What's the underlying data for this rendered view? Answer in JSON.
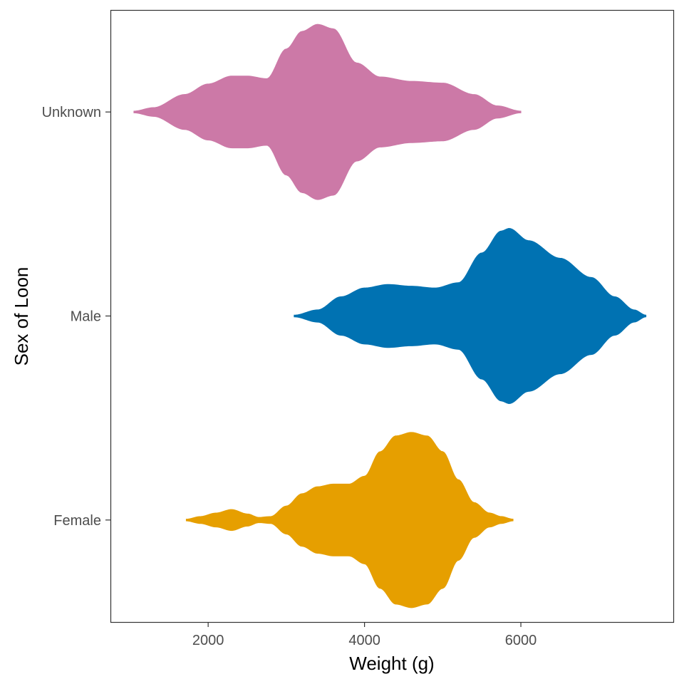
{
  "chart_data": {
    "type": "violin",
    "orientation": "horizontal",
    "xlabel": "Weight (g)",
    "ylabel": "Sex of Loon",
    "xlim": [
      750,
      7950
    ],
    "x_ticks": [
      2000,
      4000,
      6000
    ],
    "categories": [
      "Female",
      "Male",
      "Unknown"
    ],
    "grid": false,
    "legend": "none",
    "series": [
      {
        "category": "Female",
        "color": "#E69F00",
        "density": [
          [
            1720,
            0.01
          ],
          [
            1900,
            0.04
          ],
          [
            2100,
            0.08
          ],
          [
            2300,
            0.12
          ],
          [
            2500,
            0.07
          ],
          [
            2650,
            0.03
          ],
          [
            2800,
            0.04
          ],
          [
            3000,
            0.16
          ],
          [
            3200,
            0.3
          ],
          [
            3400,
            0.38
          ],
          [
            3600,
            0.41
          ],
          [
            3800,
            0.41
          ],
          [
            4000,
            0.5
          ],
          [
            4200,
            0.78
          ],
          [
            4400,
            0.96
          ],
          [
            4600,
            1.0
          ],
          [
            4800,
            0.96
          ],
          [
            5000,
            0.78
          ],
          [
            5200,
            0.46
          ],
          [
            5400,
            0.2
          ],
          [
            5600,
            0.08
          ],
          [
            5750,
            0.04
          ],
          [
            5900,
            0.01
          ]
        ]
      },
      {
        "category": "Male",
        "color": "#0072B2",
        "density": [
          [
            3100,
            0.01
          ],
          [
            3400,
            0.07
          ],
          [
            3700,
            0.22
          ],
          [
            4000,
            0.32
          ],
          [
            4300,
            0.36
          ],
          [
            4600,
            0.34
          ],
          [
            4900,
            0.32
          ],
          [
            5200,
            0.38
          ],
          [
            5500,
            0.72
          ],
          [
            5750,
            0.97
          ],
          [
            5850,
            1.0
          ],
          [
            6100,
            0.86
          ],
          [
            6500,
            0.66
          ],
          [
            6900,
            0.44
          ],
          [
            7200,
            0.22
          ],
          [
            7450,
            0.07
          ],
          [
            7600,
            0.01
          ]
        ]
      },
      {
        "category": "Unknown",
        "color": "#CC79A7",
        "density": [
          [
            1050,
            0.01
          ],
          [
            1300,
            0.05
          ],
          [
            1700,
            0.2
          ],
          [
            2000,
            0.32
          ],
          [
            2300,
            0.41
          ],
          [
            2500,
            0.41
          ],
          [
            2750,
            0.38
          ],
          [
            3000,
            0.72
          ],
          [
            3200,
            0.92
          ],
          [
            3400,
            1.0
          ],
          [
            3600,
            0.95
          ],
          [
            3900,
            0.56
          ],
          [
            4200,
            0.4
          ],
          [
            4600,
            0.35
          ],
          [
            5000,
            0.33
          ],
          [
            5400,
            0.2
          ],
          [
            5700,
            0.07
          ],
          [
            6000,
            0.01
          ]
        ]
      }
    ]
  }
}
